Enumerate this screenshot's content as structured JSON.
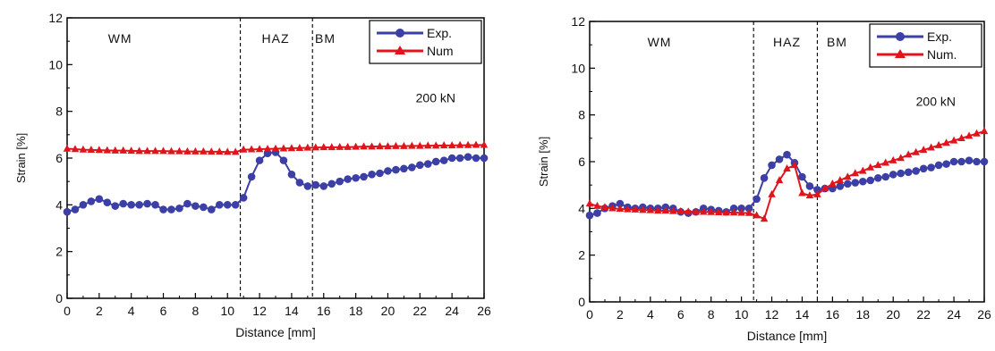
{
  "chart_data": [
    {
      "type": "line",
      "xlabel": "Distance [mm]",
      "ylabel": "Strain [%]",
      "xlim": [
        0,
        26
      ],
      "ylim": [
        0,
        12
      ],
      "xticks": [
        "0",
        "2",
        "4",
        "6",
        "8",
        "10",
        "12",
        "14",
        "16",
        "18",
        "20",
        "22",
        "24",
        "26"
      ],
      "yticks": [
        "0",
        "2",
        "4",
        "6",
        "8",
        "10",
        "12"
      ],
      "grid": false,
      "legend_position": "top-right",
      "annotation": "200 kN",
      "regions": [
        {
          "label": "WM",
          "x": 3.3
        },
        {
          "label": "HAZ",
          "x": 13.0
        },
        {
          "label": "BM",
          "x": 16.1
        }
      ],
      "boundaries": [
        10.8,
        15.3
      ],
      "series": [
        {
          "name": "Exp.",
          "color": "#3b3fa6",
          "marker": "circle",
          "x": [
            0,
            0.5,
            1,
            1.5,
            2,
            2.5,
            3,
            3.5,
            4,
            4.5,
            5,
            5.5,
            6,
            6.5,
            7,
            7.5,
            8,
            8.5,
            9,
            9.5,
            10,
            10.5,
            11,
            11.5,
            12,
            12.5,
            13,
            13.5,
            14,
            14.5,
            15,
            15.5,
            16,
            16.5,
            17,
            17.5,
            18,
            18.5,
            19,
            19.5,
            20,
            20.5,
            21,
            21.5,
            22,
            22.5,
            23,
            23.5,
            24,
            24.5,
            25,
            25.5,
            26
          ],
          "y": [
            3.7,
            3.8,
            4.0,
            4.15,
            4.25,
            4.1,
            3.95,
            4.05,
            4.0,
            4.0,
            4.05,
            4.0,
            3.8,
            3.8,
            3.85,
            4.05,
            3.95,
            3.9,
            3.8,
            4.0,
            4.0,
            4.0,
            4.3,
            5.2,
            5.9,
            6.2,
            6.25,
            5.9,
            5.3,
            4.95,
            4.8,
            4.85,
            4.8,
            4.9,
            5.0,
            5.1,
            5.15,
            5.2,
            5.3,
            5.35,
            5.45,
            5.5,
            5.55,
            5.6,
            5.7,
            5.75,
            5.85,
            5.9,
            6.0,
            6.0,
            6.05,
            6.0,
            6.0
          ]
        },
        {
          "name": "Num",
          "color": "#e0151b",
          "marker": "triangle",
          "x": [
            0,
            0.5,
            1,
            1.5,
            2,
            2.5,
            3,
            3.5,
            4,
            4.5,
            5,
            5.5,
            6,
            6.5,
            7,
            7.5,
            8,
            8.5,
            9,
            9.5,
            10,
            10.5,
            11,
            11.5,
            12,
            12.5,
            13,
            13.5,
            14,
            14.5,
            15,
            15.5,
            16,
            16.5,
            17,
            17.5,
            18,
            18.5,
            19,
            19.5,
            20,
            20.5,
            21,
            21.5,
            22,
            22.5,
            23,
            23.5,
            24,
            24.5,
            25,
            25.5,
            26
          ],
          "y": [
            6.4,
            6.38,
            6.36,
            6.35,
            6.34,
            6.33,
            6.32,
            6.32,
            6.31,
            6.3,
            6.3,
            6.3,
            6.3,
            6.29,
            6.29,
            6.28,
            6.28,
            6.28,
            6.27,
            6.27,
            6.26,
            6.26,
            6.36,
            6.37,
            6.38,
            6.39,
            6.4,
            6.41,
            6.42,
            6.43,
            6.44,
            6.45,
            6.46,
            6.46,
            6.47,
            6.47,
            6.48,
            6.49,
            6.49,
            6.5,
            6.5,
            6.51,
            6.51,
            6.52,
            6.52,
            6.53,
            6.53,
            6.54,
            6.54,
            6.55,
            6.55,
            6.56,
            6.56
          ]
        }
      ]
    },
    {
      "type": "line",
      "xlabel": "Distance [mm]",
      "ylabel": "Strain [%]",
      "xlim": [
        0,
        26
      ],
      "ylim": [
        0,
        12
      ],
      "xticks": [
        "0",
        "2",
        "4",
        "6",
        "8",
        "10",
        "12",
        "14",
        "16",
        "18",
        "20",
        "22",
        "24",
        "26"
      ],
      "yticks": [
        "0",
        "2",
        "4",
        "6",
        "8",
        "10",
        "12"
      ],
      "grid": false,
      "legend_position": "top-right",
      "annotation": "200 kN",
      "regions": [
        {
          "label": "WM",
          "x": 4.6
        },
        {
          "label": "HAZ",
          "x": 13.0
        },
        {
          "label": "BM",
          "x": 16.3
        }
      ],
      "boundaries": [
        10.8,
        15.0
      ],
      "series": [
        {
          "name": "Exp.",
          "color": "#3b3fa6",
          "marker": "circle",
          "x": [
            0,
            0.5,
            1,
            1.5,
            2,
            2.5,
            3,
            3.5,
            4,
            4.5,
            5,
            5.5,
            6,
            6.5,
            7,
            7.5,
            8,
            8.5,
            9,
            9.5,
            10,
            10.5,
            11,
            11.5,
            12,
            12.5,
            13,
            13.5,
            14,
            14.5,
            15,
            15.5,
            16,
            16.5,
            17,
            17.5,
            18,
            18.5,
            19,
            19.5,
            20,
            20.5,
            21,
            21.5,
            22,
            22.5,
            23,
            23.5,
            24,
            24.5,
            25,
            25.5,
            26
          ],
          "y": [
            3.7,
            3.8,
            4.0,
            4.1,
            4.2,
            4.05,
            4.0,
            4.05,
            4.0,
            4.0,
            4.05,
            4.0,
            3.85,
            3.8,
            3.85,
            4.0,
            3.95,
            3.9,
            3.85,
            4.0,
            4.0,
            4.0,
            4.4,
            5.3,
            5.85,
            6.1,
            6.3,
            5.95,
            5.35,
            4.95,
            4.8,
            4.85,
            4.85,
            4.95,
            5.05,
            5.1,
            5.15,
            5.2,
            5.3,
            5.35,
            5.45,
            5.5,
            5.55,
            5.6,
            5.7,
            5.75,
            5.85,
            5.9,
            6.0,
            6.0,
            6.05,
            6.0,
            6.0
          ]
        },
        {
          "name": "Num.",
          "color": "#e0151b",
          "marker": "triangle",
          "x": [
            0,
            0.5,
            1,
            1.5,
            2,
            2.5,
            3,
            3.5,
            4,
            4.5,
            5,
            5.5,
            6,
            6.5,
            7,
            7.5,
            8,
            8.5,
            9,
            9.5,
            10,
            10.5,
            11,
            11.5,
            12,
            12.5,
            13,
            13.5,
            14,
            14.5,
            15,
            15.5,
            16,
            16.5,
            17,
            17.5,
            18,
            18.5,
            19,
            19.5,
            20,
            20.5,
            21,
            21.5,
            22,
            22.5,
            23,
            23.5,
            24,
            24.5,
            25,
            25.5,
            26
          ],
          "y": [
            4.2,
            4.1,
            4.05,
            4.0,
            3.98,
            3.96,
            3.95,
            3.93,
            3.92,
            3.9,
            3.9,
            3.88,
            3.87,
            3.86,
            3.85,
            3.85,
            3.84,
            3.83,
            3.82,
            3.82,
            3.81,
            3.8,
            3.7,
            3.55,
            4.6,
            5.2,
            5.7,
            5.85,
            4.65,
            4.55,
            4.6,
            4.85,
            5.05,
            5.2,
            5.35,
            5.5,
            5.6,
            5.75,
            5.85,
            5.95,
            6.05,
            6.15,
            6.3,
            6.4,
            6.5,
            6.6,
            6.7,
            6.8,
            6.9,
            7.0,
            7.1,
            7.2,
            7.3
          ]
        }
      ]
    }
  ]
}
